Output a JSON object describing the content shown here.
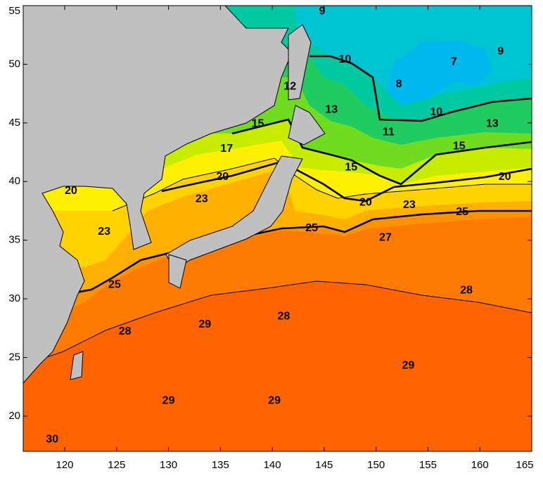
{
  "chart_data": {
    "type": "contour-map",
    "xlim": [
      116,
      165
    ],
    "ylim": [
      17,
      55
    ],
    "xticks": [
      120,
      125,
      130,
      135,
      140,
      145,
      150,
      155,
      160,
      165
    ],
    "yticks": [
      20,
      25,
      30,
      35,
      40,
      45,
      50,
      55
    ],
    "contour_labels": [
      {
        "value": 9,
        "lon": 144.8,
        "lat": 54.5
      },
      {
        "value": 10,
        "lon": 147,
        "lat": 50.4
      },
      {
        "value": 9,
        "lon": 162,
        "lat": 51.1
      },
      {
        "value": 7,
        "lon": 157.5,
        "lat": 50.2
      },
      {
        "value": 8,
        "lon": 152.2,
        "lat": 48.3
      },
      {
        "value": 12,
        "lon": 141.7,
        "lat": 48.1
      },
      {
        "value": 13,
        "lon": 145.7,
        "lat": 46.1
      },
      {
        "value": 10,
        "lon": 155.8,
        "lat": 45.9
      },
      {
        "value": 11,
        "lon": 151.2,
        "lat": 44.2
      },
      {
        "value": 13,
        "lon": 161.2,
        "lat": 44.9
      },
      {
        "value": 15,
        "lon": 138.6,
        "lat": 44.9
      },
      {
        "value": 17,
        "lon": 135.6,
        "lat": 42.8
      },
      {
        "value": 15,
        "lon": 158,
        "lat": 43
      },
      {
        "value": 15,
        "lon": 147.6,
        "lat": 41.2
      },
      {
        "value": 20,
        "lon": 135.2,
        "lat": 40.4
      },
      {
        "value": 20,
        "lon": 120.6,
        "lat": 39.2
      },
      {
        "value": 20,
        "lon": 162.4,
        "lat": 40.4
      },
      {
        "value": 23,
        "lon": 133.2,
        "lat": 38.5
      },
      {
        "value": 20,
        "lon": 149,
        "lat": 38.2
      },
      {
        "value": 23,
        "lon": 153.2,
        "lat": 38
      },
      {
        "value": 25,
        "lon": 158.3,
        "lat": 37.4
      },
      {
        "value": 23,
        "lon": 123.8,
        "lat": 35.7
      },
      {
        "value": 25,
        "lon": 143.8,
        "lat": 36
      },
      {
        "value": 27,
        "lon": 150.9,
        "lat": 35.2
      },
      {
        "value": 25,
        "lon": 124.8,
        "lat": 31.2
      },
      {
        "value": 28,
        "lon": 158.7,
        "lat": 30.7
      },
      {
        "value": 28,
        "lon": 141.1,
        "lat": 28.5
      },
      {
        "value": 29,
        "lon": 133.5,
        "lat": 27.8
      },
      {
        "value": 28,
        "lon": 125.8,
        "lat": 27.2
      },
      {
        "value": 29,
        "lon": 153.1,
        "lat": 24.3
      },
      {
        "value": 29,
        "lon": 130,
        "lat": 21.3
      },
      {
        "value": 29,
        "lon": 140.2,
        "lat": 21.3
      },
      {
        "value": 30,
        "lon": 118.8,
        "lat": 18
      }
    ]
  }
}
